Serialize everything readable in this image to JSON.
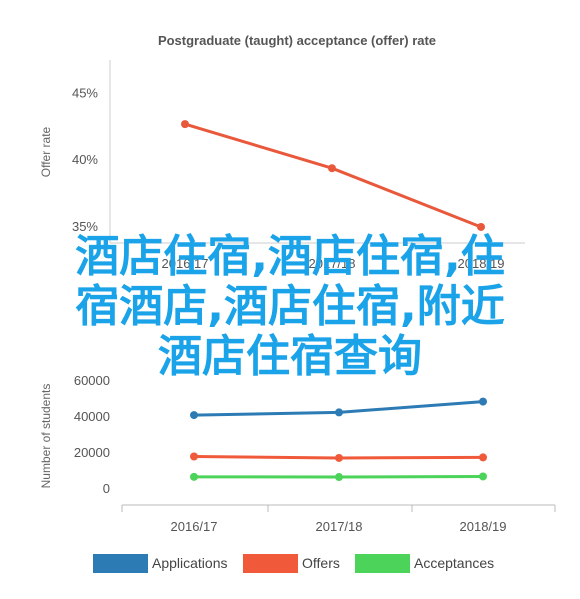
{
  "chart_data": [
    {
      "type": "line",
      "title": "Postgraduate (taught) acceptance (offer) rate",
      "ylabel": "Offer rate",
      "categories": [
        "2016/17",
        "2017/18",
        "2018/19"
      ],
      "yticks": [
        "35%",
        "40%",
        "45%"
      ],
      "ylim": [
        33.8,
        47.5
      ],
      "series": [
        {
          "values": [
            42.7,
            39.4,
            35.0
          ],
          "color": "#e9583b"
        }
      ]
    },
    {
      "type": "line",
      "ylabel": "Number of students",
      "categories": [
        "2016/17",
        "2017/18",
        "2018/19"
      ],
      "yticks": [
        "0",
        "20000",
        "40000",
        "60000"
      ],
      "ylim": [
        -5000,
        68000
      ],
      "legend_position": "bottom",
      "series": [
        {
          "name": "Applications",
          "values": [
            40500,
            42000,
            48000
          ],
          "color": "#2c7bb5"
        },
        {
          "name": "Offers",
          "values": [
            17500,
            16700,
            17000
          ],
          "color": "#f05a3a"
        },
        {
          "name": "Acceptances",
          "values": [
            6200,
            6100,
            6400
          ],
          "color": "#4cd35a"
        }
      ]
    }
  ],
  "overlay_text": [
    "酒店住宿,酒店住宿,住",
    "宿酒店,酒店住宿,附近",
    "酒店住宿查询"
  ]
}
